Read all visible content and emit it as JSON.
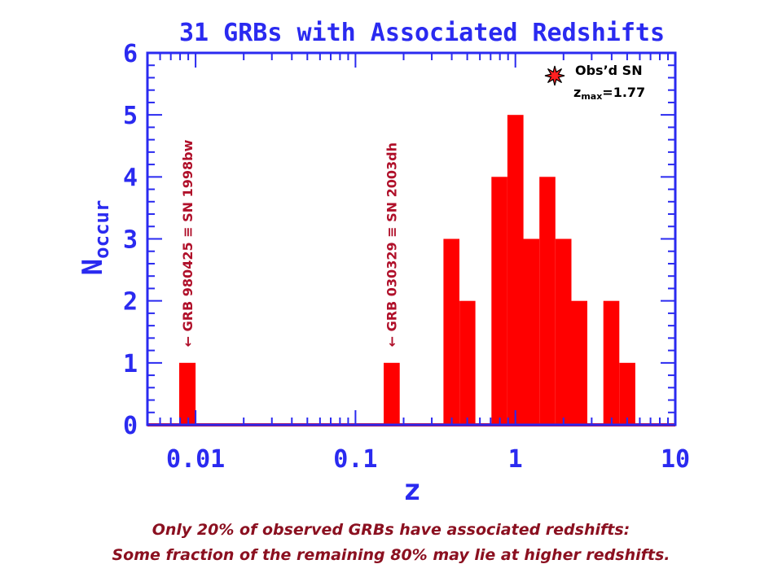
{
  "chart_data": {
    "type": "bar",
    "title": "31 GRBs with Associated Redshifts",
    "xlabel": "z",
    "ylabel": "N",
    "ylabel_sub": "occur",
    "xscale": "log",
    "xlim": [
      0.005,
      10
    ],
    "ylim": [
      0,
      6
    ],
    "x_tick_labels": [
      "0.01",
      "0.1",
      "1",
      "10"
    ],
    "x_ticks": [
      0.01,
      0.1,
      1,
      10
    ],
    "y_tick_labels": [
      "0",
      "1",
      "2",
      "3",
      "4",
      "5",
      "6"
    ],
    "y_ticks": [
      0,
      1,
      2,
      3,
      4,
      5,
      6
    ],
    "bins": [
      {
        "x0": 0.0079,
        "x1": 0.01,
        "count": 1
      },
      {
        "x0": 0.15,
        "x1": 0.189,
        "count": 1
      },
      {
        "x0": 0.355,
        "x1": 0.447,
        "count": 3
      },
      {
        "x0": 0.447,
        "x1": 0.562,
        "count": 2
      },
      {
        "x0": 0.708,
        "x1": 0.891,
        "count": 4
      },
      {
        "x0": 0.891,
        "x1": 1.122,
        "count": 5
      },
      {
        "x0": 1.122,
        "x1": 1.413,
        "count": 3
      },
      {
        "x0": 1.413,
        "x1": 1.778,
        "count": 4
      },
      {
        "x0": 1.778,
        "x1": 2.239,
        "count": 3
      },
      {
        "x0": 2.239,
        "x1": 2.818,
        "count": 2
      },
      {
        "x0": 3.548,
        "x1": 4.467,
        "count": 2
      },
      {
        "x0": 4.467,
        "x1": 5.623,
        "count": 1
      }
    ],
    "annotations": [
      {
        "text": "← GRB 980425 ≡ SN 1998bw",
        "x": 0.0089,
        "y": 1.15
      },
      {
        "text": "← GRB 030329 ≡ SN 2003dh",
        "x": 0.168,
        "y": 1.15
      }
    ],
    "legend": {
      "label": "Obs’d SN",
      "zmax_main": "z",
      "zmax_sub": "max",
      "zmax_value": "=1.77",
      "marker": "star-icon",
      "placement": "top-right"
    },
    "colors": {
      "axes": "#2a2af0",
      "bars": "#ff0000",
      "annotations": "#b0102a",
      "marker": "#ff2020"
    }
  },
  "caption": {
    "line1": "Only 20% of observed GRBs have associated redshifts:",
    "line2": "Some fraction of the remaining 80% may lie at higher redshifts."
  }
}
